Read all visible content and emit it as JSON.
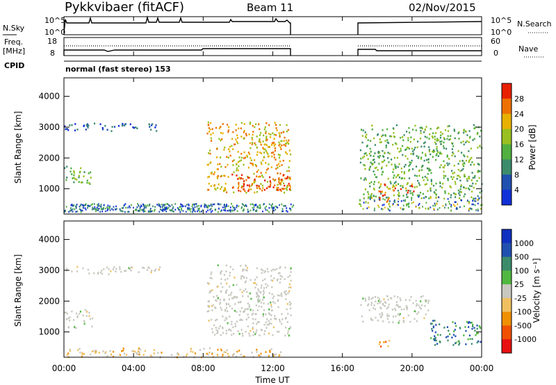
{
  "header": {
    "station": "Pykkvibaer (fitACF)",
    "beam": "Beam 11",
    "date": "02/Nov/2015"
  },
  "side_labels": {
    "nsky": "N.Sky",
    "nsearch": "N.Search",
    "freq_line1": "Freq.",
    "freq_line2": "[MHz]",
    "nave": "Nave",
    "cpid": "CPID"
  },
  "small_axes": {
    "nsky_ticks": [
      "10^5",
      "10^0"
    ],
    "nsearch_ticks": [
      "10^5",
      "10^0"
    ],
    "freq_ticks": [
      "18",
      "8"
    ],
    "nave_ticks": [
      "60",
      "0"
    ]
  },
  "cpid_text": "normal (fast stereo) 153",
  "colors": {
    "power": [
      "#1030d8",
      "#2050b0",
      "#3c8c6c",
      "#50b040",
      "#98c020",
      "#e8b000",
      "#ee7000",
      "#e82000"
    ],
    "velocity": [
      "#e81010",
      "#f05000",
      "#f09000",
      "#f0c060",
      "#c8c8c0",
      "#50b840",
      "#3c8c6c",
      "#2050b0",
      "#1030c0"
    ]
  },
  "chart_data": [
    {
      "type": "heatmap",
      "ylabel": "Slant Range [km]",
      "xlabel": "Time UT",
      "x_ticks": [
        "00:00",
        "04:00",
        "08:00",
        "12:00",
        "16:00",
        "20:00",
        "00:00"
      ],
      "y_ticks": [
        "1000",
        "2000",
        "3000",
        "4000"
      ],
      "xlim_hours": [
        0,
        24
      ],
      "ylim_km": [
        180,
        4600
      ],
      "colorbar": {
        "label": "Power [dB]",
        "ticks": [
          "4",
          "8",
          "12",
          "16",
          "20",
          "24",
          "28"
        ]
      },
      "regions": [
        {
          "name": "early-band",
          "t0": 0.0,
          "t1": 1.6,
          "r0": 1150,
          "r1": 1750,
          "level": 3
        },
        {
          "name": "far-early",
          "t0": 0.0,
          "t1": 5.5,
          "r0": 2900,
          "r1": 3150,
          "level": 1
        },
        {
          "name": "evening-main",
          "t0": 8.2,
          "t1": 13.0,
          "r0": 900,
          "r1": 3200,
          "level": 5
        },
        {
          "name": "evening-core",
          "t0": 9.6,
          "t1": 13.0,
          "r0": 950,
          "r1": 1500,
          "level": 7
        },
        {
          "name": "morning-main",
          "t0": 17.0,
          "t1": 24.0,
          "r0": 700,
          "r1": 3100,
          "level": 3
        },
        {
          "name": "morning-core",
          "t0": 18.0,
          "t1": 20.2,
          "r0": 900,
          "r1": 1200,
          "level": 6
        },
        {
          "name": "patch-red",
          "t0": 17.8,
          "t1": 18.6,
          "r0": 600,
          "r1": 850,
          "level": 7
        }
      ]
    },
    {
      "type": "heatmap",
      "ylabel": "Slant Range [km]",
      "xlabel": "Time UT",
      "x_ticks": [
        "00:00",
        "04:00",
        "08:00",
        "12:00",
        "16:00",
        "20:00",
        "00:00"
      ],
      "y_ticks": [
        "1000",
        "2000",
        "3000",
        "4000"
      ],
      "xlim_hours": [
        0,
        24
      ],
      "ylim_km": [
        180,
        4600
      ],
      "colorbar": {
        "label": "Velocity [m s⁻¹]",
        "ticks": [
          "1000",
          "500",
          "100",
          "25",
          "-25",
          "-100",
          "-500",
          "-1000"
        ]
      },
      "regions": [
        {
          "name": "early-band",
          "t0": 0.0,
          "t1": 1.6,
          "r0": 1150,
          "r1": 1750,
          "level": 4
        },
        {
          "name": "far-early",
          "t0": 0.0,
          "t1": 5.5,
          "r0": 2900,
          "r1": 3150,
          "level": 4
        },
        {
          "name": "evening-main",
          "t0": 8.2,
          "t1": 13.0,
          "r0": 900,
          "r1": 3200,
          "level": 4
        },
        {
          "name": "morning-grey",
          "t0": 17.0,
          "t1": 21.0,
          "r0": 1300,
          "r1": 2200,
          "level": 4
        },
        {
          "name": "morning-green",
          "t0": 21.0,
          "t1": 24.0,
          "r0": 600,
          "r1": 1400,
          "level": 6
        },
        {
          "name": "morning-orange",
          "t0": 18.0,
          "t1": 18.8,
          "r0": 550,
          "r1": 800,
          "level": 2
        },
        {
          "name": "ground-low",
          "t0": 0.0,
          "t1": 12.5,
          "r0": 200,
          "r1": 500,
          "level": 3
        }
      ]
    }
  ]
}
